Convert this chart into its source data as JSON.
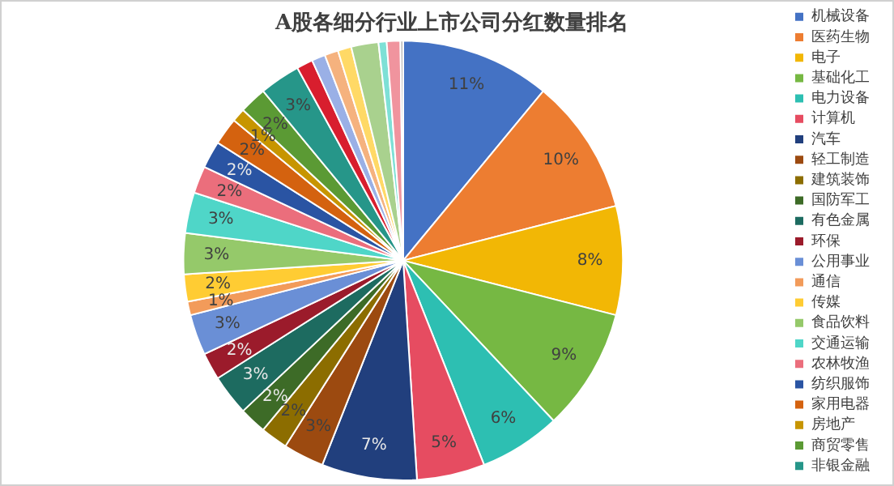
{
  "chart_data": {
    "type": "pie",
    "title": "A股各细分行业上市公司分红数量排名",
    "categories": [
      "机械设备",
      "医药生物",
      "电子",
      "基础化工",
      "电力设备",
      "计算机",
      "汽车",
      "轻工制造",
      "建筑装饰",
      "国防军工",
      "有色金属",
      "环保",
      "公用事业",
      "通信",
      "传媒",
      "食品饮料",
      "交通运输",
      "农林牧渔",
      "纺织服饰",
      "家用电器",
      "房地产",
      "商贸零售",
      "非银金融",
      null,
      null,
      null,
      null,
      null,
      null,
      null,
      null
    ],
    "values": [
      11,
      10,
      8,
      9,
      6,
      5,
      7,
      3,
      2,
      2,
      3,
      2,
      3,
      1,
      2,
      3,
      3,
      2,
      2,
      2,
      1,
      2,
      3,
      1.2,
      1,
      1,
      1,
      2,
      0.6,
      1,
      0.2
    ],
    "value_labels": [
      "11%",
      "10%",
      "8%",
      "9%",
      "6%",
      "5%",
      "7%",
      "3%",
      "2%",
      "2%",
      "3%",
      "2%",
      "3%",
      "1%",
      "2%",
      "3%",
      "3%",
      "2%",
      "2%",
      "2%",
      "1%",
      "2%",
      "3%",
      null,
      null,
      null,
      null,
      null,
      null,
      null,
      null
    ],
    "colors": [
      "#4472c4",
      "#ed7d31",
      "#f2b705",
      "#76b843",
      "#2dbfb2",
      "#e64c61",
      "#213f7d",
      "#9c4a10",
      "#8c6d00",
      "#3d6b27",
      "#1d6b60",
      "#9b1b2b",
      "#6a8fd6",
      "#f29b5a",
      "#ffcc33",
      "#95c96a",
      "#4fd6c8",
      "#eb6e7c",
      "#2a54a3",
      "#d4620f",
      "#c79500",
      "#5b9a34",
      "#269689",
      "#d81e2e",
      "#9ab0e6",
      "#f5b27e",
      "#ffd966",
      "#a9d18e",
      "#7ee0d6",
      "#f0949e",
      "#b0b0b0"
    ],
    "legend": "right"
  }
}
